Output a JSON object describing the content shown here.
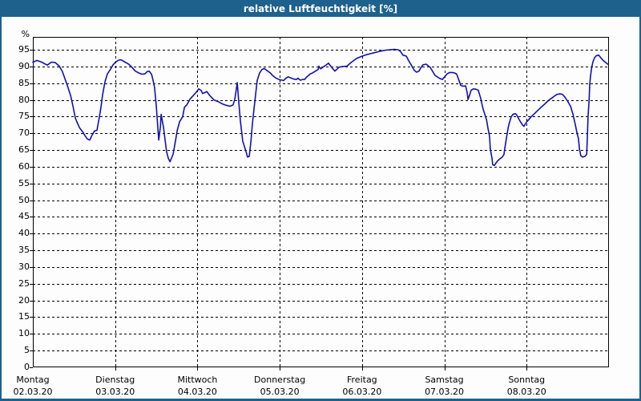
{
  "window": {
    "title": "relative Luftfeuchtigkeit [%]"
  },
  "colors": {
    "titlebar": "#1e618c",
    "frame": "#1e618c",
    "curve": "#1111b0",
    "grid": "#000000",
    "background": "#fdfdfd",
    "plot_background": "#fdfdfd",
    "text": "#000000"
  },
  "chart_data": {
    "type": "line",
    "title": "relative Luftfeuchtigkeit [%]",
    "xlabel": "",
    "ylabel": "%",
    "ylim": [
      0,
      98.85
    ],
    "xlim": [
      0,
      168
    ],
    "x_unit": "hours since Montag 02.03.20 00:00",
    "grid": "dashed",
    "legend": "none",
    "y_ticks": [
      95,
      90,
      85,
      80,
      75,
      70,
      65,
      60,
      55,
      50,
      45,
      40,
      35,
      30,
      25,
      20,
      15,
      10,
      5,
      0
    ],
    "x_ticks": [
      {
        "day": "Montag",
        "date": "02.03.20",
        "hour": 0
      },
      {
        "day": "Dienstag",
        "date": "03.03.20",
        "hour": 24
      },
      {
        "day": "Mittwoch",
        "date": "04.03.20",
        "hour": 48
      },
      {
        "day": "Donnerstag",
        "date": "05.03.20",
        "hour": 72
      },
      {
        "day": "Freitag",
        "date": "06.03.20",
        "hour": 96
      },
      {
        "day": "Samstag",
        "date": "07.03.20",
        "hour": 120
      },
      {
        "day": "Sonntag",
        "date": "08.03.20",
        "hour": 144
      }
    ],
    "series": [
      {
        "name": "relative Luftfeuchtigkeit",
        "color": "#1111b0",
        "points": [
          [
            0,
            91.3
          ],
          [
            1.2,
            91.8
          ],
          [
            2.6,
            91.3
          ],
          [
            4.2,
            90.4
          ],
          [
            5.4,
            91.3
          ],
          [
            6.5,
            91.2
          ],
          [
            7.7,
            90.1
          ],
          [
            8.6,
            88.5
          ],
          [
            10,
            84.5
          ],
          [
            11,
            81.3
          ],
          [
            11.7,
            78.1
          ],
          [
            12.4,
            74.5
          ],
          [
            12.9,
            73.3
          ],
          [
            13.6,
            71.7
          ],
          [
            14.5,
            70.5
          ],
          [
            15.2,
            69.3
          ],
          [
            15.9,
            68.3
          ],
          [
            16.6,
            68
          ],
          [
            17.3,
            69.5
          ],
          [
            18,
            70.7
          ],
          [
            18.7,
            70.9
          ],
          [
            19.4,
            74.9
          ],
          [
            19.9,
            78.1
          ],
          [
            20.3,
            81.3
          ],
          [
            21,
            85.3
          ],
          [
            21.7,
            87.7
          ],
          [
            22.7,
            89.3
          ],
          [
            23.4,
            90.5
          ],
          [
            24.1,
            91.3
          ],
          [
            25,
            91.9
          ],
          [
            25.7,
            92
          ],
          [
            26.9,
            91.3
          ],
          [
            27.8,
            90.8
          ],
          [
            28.5,
            90.2
          ],
          [
            29.2,
            89.4
          ],
          [
            29.9,
            88.6
          ],
          [
            30.8,
            88.1
          ],
          [
            31.8,
            87.7
          ],
          [
            32.7,
            87.8
          ],
          [
            33.4,
            88.5
          ],
          [
            33.9,
            88.6
          ],
          [
            34.6,
            87.7
          ],
          [
            35,
            86.1
          ],
          [
            35.5,
            83.7
          ],
          [
            36,
            78.1
          ],
          [
            36.5,
            71
          ],
          [
            36.7,
            68
          ],
          [
            37.2,
            72
          ],
          [
            37.4,
            75.7
          ],
          [
            38.1,
            71.7
          ],
          [
            38.6,
            67.7
          ],
          [
            39,
            64.5
          ],
          [
            39.5,
            62.5
          ],
          [
            40,
            61.5
          ],
          [
            40.4,
            62.5
          ],
          [
            40.9,
            63.7
          ],
          [
            41.6,
            67.7
          ],
          [
            42.1,
            70.9
          ],
          [
            42.8,
            73.5
          ],
          [
            43.7,
            75
          ],
          [
            44.2,
            77.8
          ],
          [
            44.9,
            78.5
          ],
          [
            45.8,
            80.2
          ],
          [
            46.5,
            81
          ],
          [
            47.4,
            82
          ],
          [
            48.4,
            83.3
          ],
          [
            49.1,
            82.8
          ],
          [
            49.5,
            81.9
          ],
          [
            50.2,
            82.2
          ],
          [
            50.7,
            82.5
          ],
          [
            51.6,
            81.3
          ],
          [
            52.8,
            80
          ],
          [
            54,
            79.5
          ],
          [
            55.1,
            78.9
          ],
          [
            56.3,
            78.4
          ],
          [
            57.5,
            78.1
          ],
          [
            58.4,
            78.5
          ],
          [
            58.9,
            80.3
          ],
          [
            59.3,
            83
          ],
          [
            59.6,
            85.2
          ],
          [
            60,
            80
          ],
          [
            60.5,
            74
          ],
          [
            61.2,
            67.7
          ],
          [
            62.2,
            64.4
          ],
          [
            62.6,
            62.9
          ],
          [
            63.1,
            63.1
          ],
          [
            63.6,
            67.7
          ],
          [
            64,
            72.5
          ],
          [
            64.5,
            77.3
          ],
          [
            65,
            82
          ],
          [
            65.4,
            85.7
          ],
          [
            66.1,
            88
          ],
          [
            66.8,
            89.1
          ],
          [
            67.5,
            89.4
          ],
          [
            68.5,
            88.6
          ],
          [
            69.2,
            88.1
          ],
          [
            69.9,
            87.3
          ],
          [
            70.8,
            86.6
          ],
          [
            71.7,
            86.1
          ],
          [
            72.7,
            85.9
          ],
          [
            73.1,
            85.8
          ],
          [
            73.8,
            86.5
          ],
          [
            74.5,
            86.9
          ],
          [
            75.2,
            86.6
          ],
          [
            76.2,
            86.2
          ],
          [
            76.9,
            86.1
          ],
          [
            77.3,
            86.5
          ],
          [
            78,
            85.9
          ],
          [
            78.7,
            86.1
          ],
          [
            79.2,
            86.1
          ],
          [
            79.9,
            86.9
          ],
          [
            80.8,
            87.7
          ],
          [
            81.6,
            88.1
          ],
          [
            82.3,
            88.5
          ],
          [
            83.2,
            89.1
          ],
          [
            83.4,
            90.1
          ],
          [
            83.9,
            89.3
          ],
          [
            84.6,
            89.8
          ],
          [
            85.5,
            90.4
          ],
          [
            86.2,
            91
          ],
          [
            87.4,
            89.4
          ],
          [
            88.1,
            88.6
          ],
          [
            89.3,
            89.8
          ],
          [
            90.4,
            90
          ],
          [
            91.6,
            90.1
          ],
          [
            92.8,
            91.2
          ],
          [
            94.4,
            92.4
          ],
          [
            95.8,
            93
          ],
          [
            97.2,
            93.5
          ],
          [
            98.4,
            93.8
          ],
          [
            99.5,
            94.1
          ],
          [
            100.7,
            94.4
          ],
          [
            101.9,
            94.7
          ],
          [
            103,
            94.9
          ],
          [
            104.2,
            95
          ],
          [
            105.4,
            95.1
          ],
          [
            106.5,
            95
          ],
          [
            107.2,
            94.5
          ],
          [
            107.9,
            93.4
          ],
          [
            108.9,
            93.1
          ],
          [
            109.6,
            91.7
          ],
          [
            110.3,
            90.5
          ],
          [
            111.2,
            88.9
          ],
          [
            111.9,
            88.3
          ],
          [
            112.6,
            88.6
          ],
          [
            113.3,
            89.9
          ],
          [
            113.8,
            90.5
          ],
          [
            114.7,
            90.7
          ],
          [
            115.9,
            89.7
          ],
          [
            116.6,
            88.5
          ],
          [
            117.3,
            87.3
          ],
          [
            118.5,
            86.5
          ],
          [
            119.4,
            86.1
          ],
          [
            120.1,
            86.9
          ],
          [
            120.8,
            87.8
          ],
          [
            121.5,
            88.2
          ],
          [
            122.4,
            88.2
          ],
          [
            123.1,
            88
          ],
          [
            123.6,
            87.7
          ],
          [
            124.3,
            85.7
          ],
          [
            124.8,
            84.3
          ],
          [
            125.5,
            84.1
          ],
          [
            126.2,
            84.2
          ],
          [
            126.7,
            82
          ],
          [
            126.9,
            80.1
          ],
          [
            127.4,
            81.5
          ],
          [
            127.8,
            82.9
          ],
          [
            128.5,
            83.3
          ],
          [
            129.2,
            83.2
          ],
          [
            129.9,
            82.9
          ],
          [
            130.6,
            80.5
          ],
          [
            131.3,
            77.3
          ],
          [
            132.3,
            74.1
          ],
          [
            132.7,
            71.7
          ],
          [
            133.2,
            68.9
          ],
          [
            133.4,
            65.3
          ],
          [
            133.9,
            62.5
          ],
          [
            134.1,
            60.6
          ],
          [
            134.6,
            60.4
          ],
          [
            135.1,
            61.2
          ],
          [
            135.5,
            61.7
          ],
          [
            136,
            62.2
          ],
          [
            136.9,
            62.9
          ],
          [
            137.4,
            63.7
          ],
          [
            137.6,
            65.3
          ],
          [
            138.1,
            68.5
          ],
          [
            138.6,
            71.7
          ],
          [
            139,
            73.3
          ],
          [
            139.5,
            74.9
          ],
          [
            140,
            75.7
          ],
          [
            140.7,
            75.9
          ],
          [
            141.1,
            75.5
          ],
          [
            141.6,
            74.5
          ],
          [
            142.3,
            73.3
          ],
          [
            142.8,
            72.5
          ],
          [
            143.2,
            72.1
          ],
          [
            143.9,
            73.3
          ],
          [
            144.6,
            74.1
          ],
          [
            145.3,
            74.9
          ],
          [
            146.5,
            76.1
          ],
          [
            147.4,
            77
          ],
          [
            148.1,
            77.7
          ],
          [
            149.1,
            78.6
          ],
          [
            149.8,
            79.3
          ],
          [
            150.7,
            80.1
          ],
          [
            151.4,
            80.6
          ],
          [
            152.3,
            81.3
          ],
          [
            153,
            81.7
          ],
          [
            153.7,
            81.8
          ],
          [
            154.4,
            81.7
          ],
          [
            155.1,
            80.9
          ],
          [
            155.9,
            79.7
          ],
          [
            156.8,
            78.1
          ],
          [
            157.5,
            75.7
          ],
          [
            158.2,
            72.5
          ],
          [
            158.7,
            70
          ],
          [
            159.1,
            68.5
          ],
          [
            159.4,
            65.3
          ],
          [
            159.8,
            63.3
          ],
          [
            160.3,
            62.9
          ],
          [
            161,
            63.1
          ],
          [
            161.5,
            63.7
          ],
          [
            161.7,
            68.5
          ],
          [
            161.9,
            74.9
          ],
          [
            162.2,
            79.7
          ],
          [
            162.4,
            84.5
          ],
          [
            162.6,
            86.9
          ],
          [
            162.9,
            89.3
          ],
          [
            163.3,
            91.3
          ],
          [
            163.8,
            92.6
          ],
          [
            164.3,
            93.2
          ],
          [
            165,
            93.4
          ],
          [
            165.7,
            92.5
          ],
          [
            166.4,
            91.7
          ],
          [
            167.3,
            91
          ],
          [
            167.8,
            90.6
          ]
        ]
      }
    ]
  }
}
